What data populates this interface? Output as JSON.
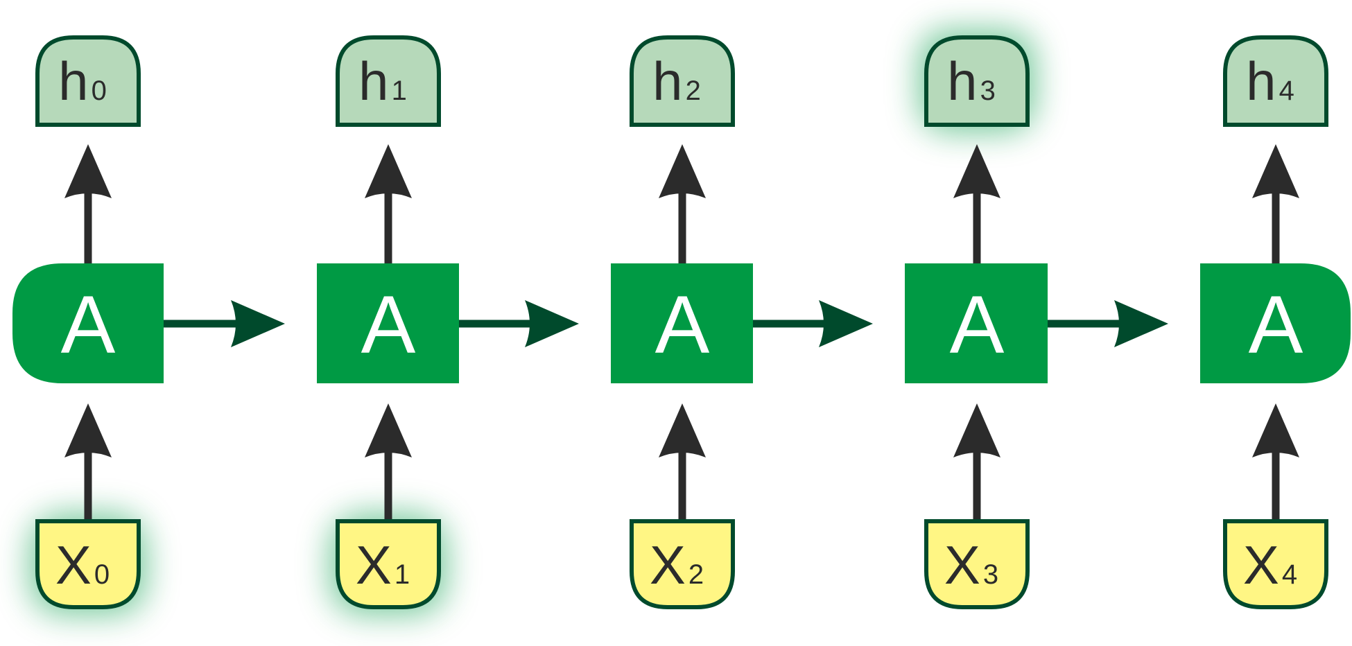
{
  "colors": {
    "cell_fill": "#009a44",
    "cell_text": "#ffffff",
    "hidden_fill": "#b6d9ba",
    "hidden_stroke": "#004a2c",
    "input_fill": "#fff684",
    "input_stroke": "#004a2c",
    "vertical_arrow": "#2b2b2b",
    "recurrent_arrow": "#004a2c",
    "glow": "#009a44"
  },
  "cells": [
    {
      "label": "A",
      "shape": "rounded-left"
    },
    {
      "label": "A",
      "shape": "square"
    },
    {
      "label": "A",
      "shape": "square"
    },
    {
      "label": "A",
      "shape": "square"
    },
    {
      "label": "A",
      "shape": "rounded-right"
    }
  ],
  "hidden_states": [
    {
      "letter": "h",
      "sub": "0",
      "highlighted": false
    },
    {
      "letter": "h",
      "sub": "1",
      "highlighted": false
    },
    {
      "letter": "h",
      "sub": "2",
      "highlighted": false
    },
    {
      "letter": "h",
      "sub": "3",
      "highlighted": true
    },
    {
      "letter": "h",
      "sub": "4",
      "highlighted": false
    }
  ],
  "inputs": [
    {
      "letter": "X",
      "sub": "0",
      "highlighted": true
    },
    {
      "letter": "X",
      "sub": "1",
      "highlighted": true
    },
    {
      "letter": "X",
      "sub": "2",
      "highlighted": false
    },
    {
      "letter": "X",
      "sub": "3",
      "highlighted": false
    },
    {
      "letter": "X",
      "sub": "4",
      "highlighted": false
    }
  ]
}
